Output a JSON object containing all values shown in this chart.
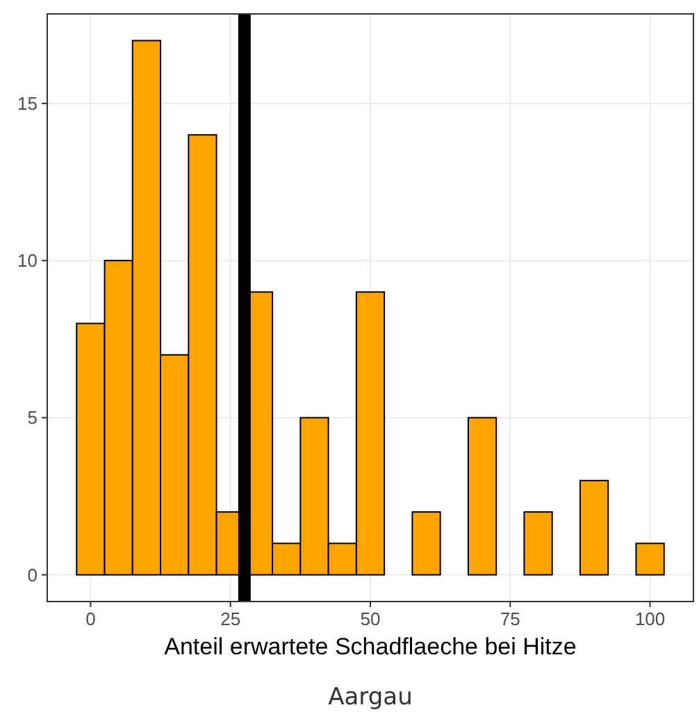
{
  "chart_data": {
    "type": "histogram",
    "xlabel": "Anteil erwartete Schadflaeche bei Hitze",
    "bins": [
      -2.5,
      2.5,
      7.5,
      12.5,
      17.5,
      22.5,
      27.5,
      32.5,
      37.5,
      42.5,
      47.5,
      52.5,
      57.5,
      62.5,
      67.5,
      72.5,
      77.5,
      82.5,
      87.5,
      92.5,
      97.5,
      102.5
    ],
    "values": [
      8,
      10,
      17,
      7,
      14,
      2,
      9,
      1,
      5,
      1,
      9,
      0,
      2,
      0,
      5,
      0,
      2,
      0,
      3,
      0,
      1
    ],
    "color": "#ffa500",
    "xlim": [
      -7.75,
      107.75
    ],
    "xticks": [
      0,
      25,
      50,
      75,
      100
    ],
    "ylim": [
      -0.85,
      17.85
    ],
    "yticks": [
      0,
      5,
      10,
      15
    ],
    "grid": true,
    "ref_lines": [
      {
        "axis": "x",
        "value": 27.5,
        "color": "#000000"
      }
    ],
    "annotations": [
      "Aargau"
    ]
  }
}
